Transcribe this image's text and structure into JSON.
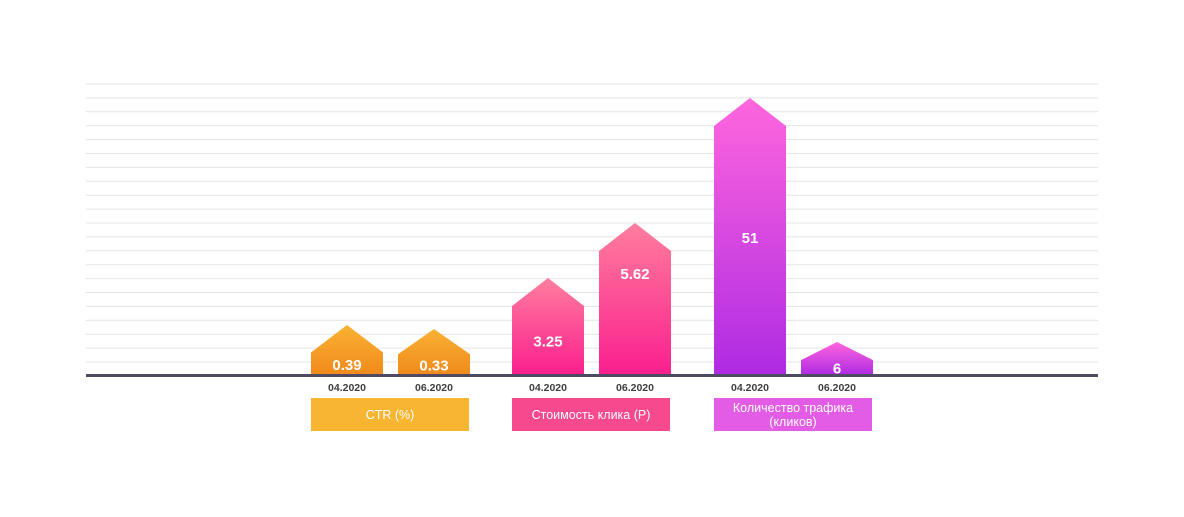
{
  "chart_data": {
    "type": "bar",
    "grid": true,
    "groups": [
      {
        "name": "CTR (%)",
        "categories": [
          "04.2020",
          "06.2020"
        ],
        "values": [
          0.39,
          0.33
        ],
        "value_labels": [
          "0.39",
          "0.33"
        ],
        "color_top": "#F9B233",
        "color_bottom": "#F08A1C",
        "label_color": "#F7B532"
      },
      {
        "name": "Стоимость клика (Р)",
        "categories": [
          "04.2020",
          "06.2020"
        ],
        "values": [
          3.25,
          5.62
        ],
        "value_labels": [
          "3.25",
          "5.62"
        ],
        "color_top": "#FF7E9E",
        "color_bottom": "#FA1F8E",
        "label_color": "#F6498E"
      },
      {
        "name": "Количество трафика (кликов)",
        "name_lines": [
          "Количество трафика",
          "(кликов)"
        ],
        "categories": [
          "04.2020",
          "06.2020"
        ],
        "values": [
          51,
          6
        ],
        "value_labels": [
          "51",
          "6"
        ],
        "color_top": "#FF66DD",
        "color_bottom": "#AE2BE3",
        "label_color": "#E25CE5"
      }
    ],
    "colors": {
      "grid": "#E4E4E4",
      "baseline": "#4E4A63",
      "tick_text": "#3F3F3F",
      "value_text": "#FFFFFF"
    }
  }
}
